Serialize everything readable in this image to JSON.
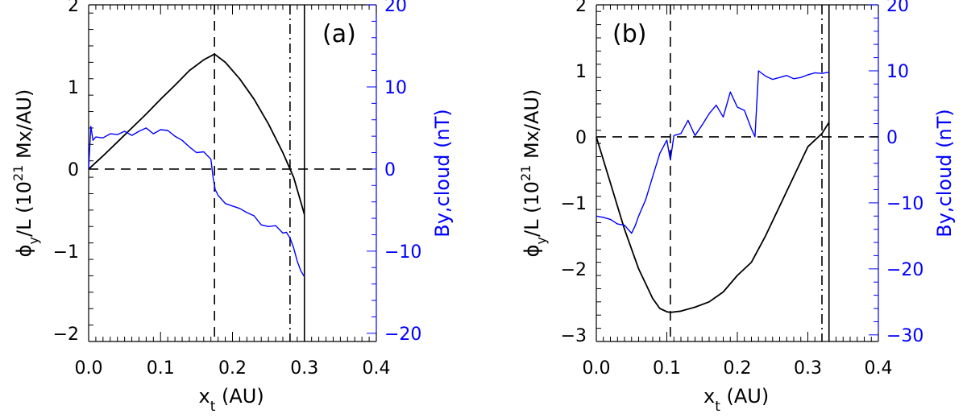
{
  "figure": {
    "colors": {
      "left_axis": "#000000",
      "right_axis": "#0000ff",
      "flux": "#000000",
      "field": "#0000ff"
    }
  },
  "chart_data": [
    {
      "type": "line",
      "panel_label": "(a)",
      "xlabel_main": "x",
      "xlabel_sub": "t",
      "xlabel_unit": " (AU)",
      "ylabel": "φ_y/L (10^21 Mx/AU)",
      "ylabel_left_parts": [
        "ϕ",
        "y",
        "/L (10",
        "21",
        " Mx/AU)"
      ],
      "ylabel_right": "By,cloud (nT)",
      "xlim": [
        0,
        0.4
      ],
      "ylim": [
        -2.1,
        2
      ],
      "y2lim": [
        -21,
        20
      ],
      "xticks": [
        "0.0",
        "0.1",
        "0.2",
        "0.3",
        "0.4"
      ],
      "yticks": [
        "−2",
        "−1",
        "0",
        "1",
        "2"
      ],
      "y2ticks": [
        "−20",
        "−10",
        "0",
        "10",
        "20"
      ],
      "series": [
        {
          "axis": "left",
          "x": [
            0.0,
            0.02,
            0.04,
            0.06,
            0.08,
            0.1,
            0.12,
            0.14,
            0.16,
            0.175,
            0.19,
            0.21,
            0.23,
            0.25,
            0.27,
            0.285,
            0.3
          ],
          "y": [
            0.0,
            0.16,
            0.33,
            0.5,
            0.67,
            0.85,
            1.02,
            1.2,
            1.33,
            1.4,
            1.3,
            1.1,
            0.85,
            0.55,
            0.2,
            -0.1,
            -0.55
          ]
        },
        {
          "axis": "right",
          "x": [
            0.0,
            0.003,
            0.006,
            0.01,
            0.02,
            0.03,
            0.04,
            0.05,
            0.06,
            0.07,
            0.08,
            0.09,
            0.1,
            0.11,
            0.12,
            0.13,
            0.14,
            0.15,
            0.16,
            0.17,
            0.173,
            0.176,
            0.18,
            0.19,
            0.2,
            0.21,
            0.22,
            0.23,
            0.24,
            0.25,
            0.26,
            0.27,
            0.275,
            0.28,
            0.285,
            0.29,
            0.295,
            0.3
          ],
          "y": [
            0.0,
            5.2,
            3.5,
            3.9,
            3.8,
            4.3,
            4.2,
            4.6,
            4.1,
            4.6,
            5.0,
            4.3,
            4.8,
            4.7,
            4.0,
            3.5,
            2.7,
            2.0,
            2.1,
            1.2,
            -1.0,
            -2.5,
            -3.2,
            -4.2,
            -4.5,
            -4.8,
            -5.3,
            -5.7,
            -6.8,
            -7.0,
            -6.9,
            -7.8,
            -7.7,
            -8.4,
            -9.6,
            -11.2,
            -12.4,
            -13.1
          ]
        }
      ],
      "vlines": [
        {
          "x": 0.175,
          "style": "dashed"
        },
        {
          "x": 0.28,
          "style": "dashdot"
        },
        {
          "x": 0.3,
          "style": "solid"
        }
      ],
      "hline": {
        "y": 0,
        "style": "dashed"
      }
    },
    {
      "type": "line",
      "panel_label": "(b)",
      "xlabel_main": "x",
      "xlabel_sub": "t",
      "xlabel_unit": " (AU)",
      "ylabel": "φ_y/L (10^21 Mx/AU)",
      "ylabel_left_parts": [
        "ϕ",
        "y",
        "/L (10",
        "21",
        " Mx/AU)"
      ],
      "ylabel_right": "By,cloud (nT)",
      "xlim": [
        0,
        0.4
      ],
      "ylim": [
        -3.1,
        2
      ],
      "y2lim": [
        -31,
        20
      ],
      "xticks": [
        "0.0",
        "0.1",
        "0.2",
        "0.3",
        "0.4"
      ],
      "yticks": [
        "−3",
        "−2",
        "−1",
        "0",
        "1",
        "2"
      ],
      "y2ticks": [
        "−30",
        "−20",
        "−10",
        "0",
        "10",
        "20"
      ],
      "series": [
        {
          "axis": "left",
          "x": [
            0.0,
            0.02,
            0.04,
            0.06,
            0.08,
            0.09,
            0.1,
            0.105,
            0.12,
            0.14,
            0.16,
            0.18,
            0.2,
            0.22,
            0.24,
            0.26,
            0.28,
            0.3,
            0.32,
            0.33
          ],
          "y": [
            0.0,
            -0.7,
            -1.4,
            -2.0,
            -2.45,
            -2.6,
            -2.65,
            -2.66,
            -2.64,
            -2.58,
            -2.5,
            -2.35,
            -2.1,
            -1.9,
            -1.5,
            -1.05,
            -0.6,
            -0.15,
            0.05,
            0.22
          ]
        },
        {
          "axis": "right",
          "x": [
            0.0,
            0.01,
            0.02,
            0.03,
            0.04,
            0.05,
            0.055,
            0.06,
            0.07,
            0.08,
            0.09,
            0.1,
            0.105,
            0.11,
            0.12,
            0.13,
            0.14,
            0.15,
            0.16,
            0.17,
            0.18,
            0.19,
            0.2,
            0.21,
            0.22,
            0.225,
            0.23,
            0.24,
            0.25,
            0.26,
            0.27,
            0.28,
            0.29,
            0.3,
            0.31,
            0.32,
            0.33
          ],
          "y": [
            -12.0,
            -12.2,
            -12.5,
            -13.2,
            -13.4,
            -14.6,
            -13.5,
            -12.0,
            -9.5,
            -6.0,
            -2.5,
            -0.5,
            -3.5,
            0.2,
            0.5,
            2.5,
            0.2,
            1.8,
            3.5,
            4.8,
            3.0,
            6.8,
            4.5,
            4.0,
            1.2,
            0.0,
            10.0,
            9.2,
            8.7,
            9.0,
            9.3,
            8.8,
            9.0,
            9.4,
            9.7,
            9.6,
            9.8
          ]
        }
      ],
      "vlines": [
        {
          "x": 0.105,
          "style": "dashed"
        },
        {
          "x": 0.32,
          "style": "dashdot"
        },
        {
          "x": 0.33,
          "style": "solid"
        }
      ],
      "hline": {
        "y": 0,
        "style": "dashed"
      }
    }
  ]
}
